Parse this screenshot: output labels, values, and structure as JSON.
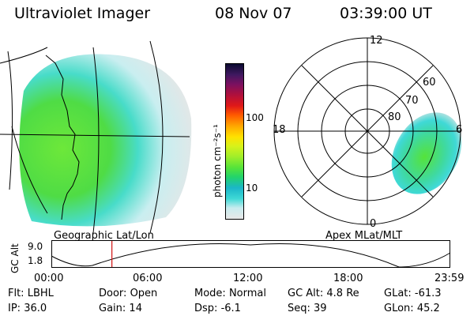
{
  "header": {
    "instrument": "Ultraviolet Imager",
    "date": "08 Nov 07",
    "time": "03:39:00 UT"
  },
  "left_panel": {
    "label": "Geographic Lat/Lon"
  },
  "right_panel": {
    "label": "Apex MLat/MLT",
    "mlt_labels": {
      "top": "12",
      "left": "18",
      "right": "6",
      "bottom": "0"
    },
    "lat_labels": [
      "60",
      "70",
      "80"
    ]
  },
  "colorbar": {
    "unit_label": "photon cm⁻²s⁻¹",
    "ticks": [
      "100",
      "10"
    ],
    "scale": "log",
    "colors": [
      "#e8e8e8",
      "#c8ecef",
      "#3fd9d6",
      "#1bb6c8",
      "#22d46a",
      "#55e33a",
      "#9fee2a",
      "#d8f21a",
      "#ffe100",
      "#ffa600",
      "#ff5a00",
      "#e01818",
      "#b0103c",
      "#7a1060",
      "#401860",
      "#0a0a30"
    ]
  },
  "altitude_plot": {
    "ylabel": "GC Alt",
    "yticks": [
      "9.0",
      "1.8"
    ],
    "xticks": [
      "00:00",
      "06:00",
      "12:00",
      "18:00",
      "23:59"
    ],
    "current_time_hours": 3.65
  },
  "status": {
    "flt_label": "Flt:",
    "flt_value": "LBHL",
    "door_label": "Door:",
    "door_value": "Open",
    "mode_label": "Mode:",
    "mode_value": "Normal",
    "gcalt_label": "GC Alt:",
    "gcalt_value": "4.8 Re",
    "glat_label": "GLat:",
    "glat_value": "-61.3",
    "ip_label": "IP:",
    "ip_value": "36.0",
    "gain_label": "Gain:",
    "gain_value": "14",
    "dsp_label": "Dsp:",
    "dsp_value": "-6.1",
    "seq_label": "Seq:",
    "seq_value": "39",
    "glon_label": "GLon:",
    "glon_value": "45.2"
  }
}
